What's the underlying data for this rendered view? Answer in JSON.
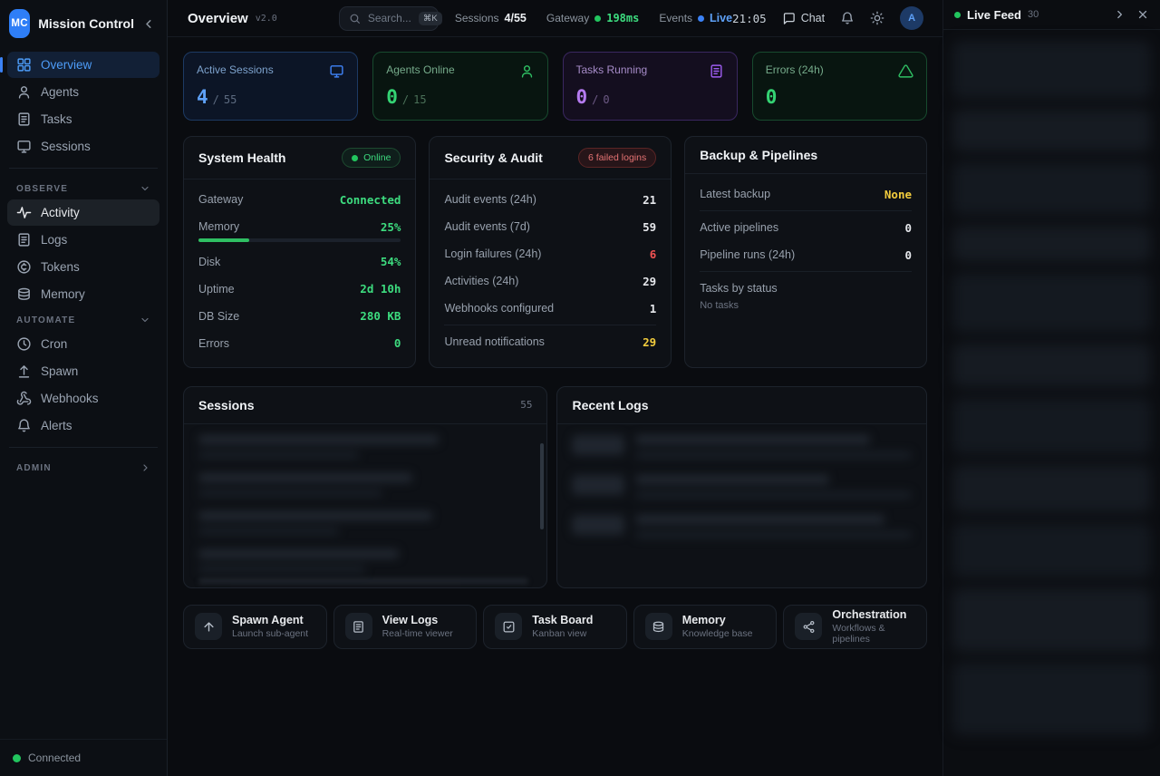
{
  "colors": {
    "accent_blue": "#3b82f6",
    "green": "#3ddc7f",
    "purple": "#b57bf0",
    "yellow": "#f2cc3d",
    "red": "#f05252"
  },
  "app": {
    "brand": "Mission Control",
    "brand_initials": "MC",
    "connection_status": "Connected"
  },
  "sidebar": {
    "main": [
      {
        "label": "Overview",
        "icon": "grid"
      },
      {
        "label": "Agents",
        "icon": "person"
      },
      {
        "label": "Tasks",
        "icon": "document"
      },
      {
        "label": "Sessions",
        "icon": "monitor"
      }
    ],
    "sections": [
      {
        "label": "OBSERVE",
        "items": [
          {
            "label": "Activity",
            "icon": "pulse"
          },
          {
            "label": "Logs",
            "icon": "document"
          },
          {
            "label": "Tokens",
            "icon": "coin"
          },
          {
            "label": "Memory",
            "icon": "database"
          }
        ]
      },
      {
        "label": "AUTOMATE",
        "items": [
          {
            "label": "Cron",
            "icon": "clock"
          },
          {
            "label": "Spawn",
            "icon": "arrow-up-from-line"
          },
          {
            "label": "Webhooks",
            "icon": "webhook"
          },
          {
            "label": "Alerts",
            "icon": "bell"
          }
        ]
      },
      {
        "label": "ADMIN",
        "items": []
      }
    ]
  },
  "topbar": {
    "title": "Overview",
    "version": "v2.0",
    "search": {
      "placeholder": "Search...",
      "shortcut": "⌘K"
    },
    "sessions": {
      "label": "Sessions",
      "value": "4/55"
    },
    "gateway": {
      "label": "Gateway",
      "value": "198ms"
    },
    "events": {
      "label": "Events",
      "value": "Live"
    },
    "clock": "21:05",
    "chat_label": "Chat",
    "avatar_initial": "A"
  },
  "stat_cards": [
    {
      "label": "Active Sessions",
      "value": "4",
      "sep": "/",
      "total": "55"
    },
    {
      "label": "Agents Online",
      "value": "0",
      "sep": "/",
      "total": "15"
    },
    {
      "label": "Tasks Running",
      "value": "0",
      "sep": "/",
      "total": "0"
    },
    {
      "label": "Errors (24h)",
      "value": "0"
    }
  ],
  "system_health": {
    "title": "System Health",
    "badge": "Online",
    "rows": [
      {
        "label": "Gateway",
        "value": "Connected"
      },
      {
        "label": "Memory",
        "value": "25%"
      },
      {
        "label": "Disk",
        "value": "54%"
      },
      {
        "label": "Uptime",
        "value": "2d 10h"
      },
      {
        "label": "DB Size",
        "value": "280 KB"
      },
      {
        "label": "Errors",
        "value": "0"
      }
    ],
    "memory_progress": 25
  },
  "security_audit": {
    "title": "Security & Audit",
    "badge": "6 failed logins",
    "rows": [
      {
        "label": "Audit events (24h)",
        "value": "21"
      },
      {
        "label": "Audit events (7d)",
        "value": "59"
      },
      {
        "label": "Login failures (24h)",
        "value": "6"
      },
      {
        "label": "Activities (24h)",
        "value": "29"
      },
      {
        "label": "Webhooks configured",
        "value": "1"
      },
      {
        "label": "Unread notifications",
        "value": "29"
      }
    ]
  },
  "backup_pipelines": {
    "title": "Backup & Pipelines",
    "rows": [
      {
        "label": "Latest backup",
        "value": "None"
      },
      {
        "label": "Active pipelines",
        "value": "0"
      },
      {
        "label": "Pipeline runs (24h)",
        "value": "0"
      }
    ],
    "tasks_by_status_label": "Tasks by status",
    "tasks_empty": "No tasks"
  },
  "sessions_panel": {
    "title": "Sessions",
    "count": "55"
  },
  "recent_logs_panel": {
    "title": "Recent Logs"
  },
  "quick_actions": [
    {
      "title": "Spawn Agent",
      "subtitle": "Launch sub-agent",
      "icon": "arrow-up"
    },
    {
      "title": "View Logs",
      "subtitle": "Real-time viewer",
      "icon": "document"
    },
    {
      "title": "Task Board",
      "subtitle": "Kanban view",
      "icon": "square-check"
    },
    {
      "title": "Memory",
      "subtitle": "Knowledge base",
      "icon": "database"
    },
    {
      "title": "Orchestration",
      "subtitle": "Workflows & pipelines",
      "icon": "share-nodes"
    }
  ],
  "live_feed": {
    "title": "Live Feed",
    "count": "30"
  }
}
